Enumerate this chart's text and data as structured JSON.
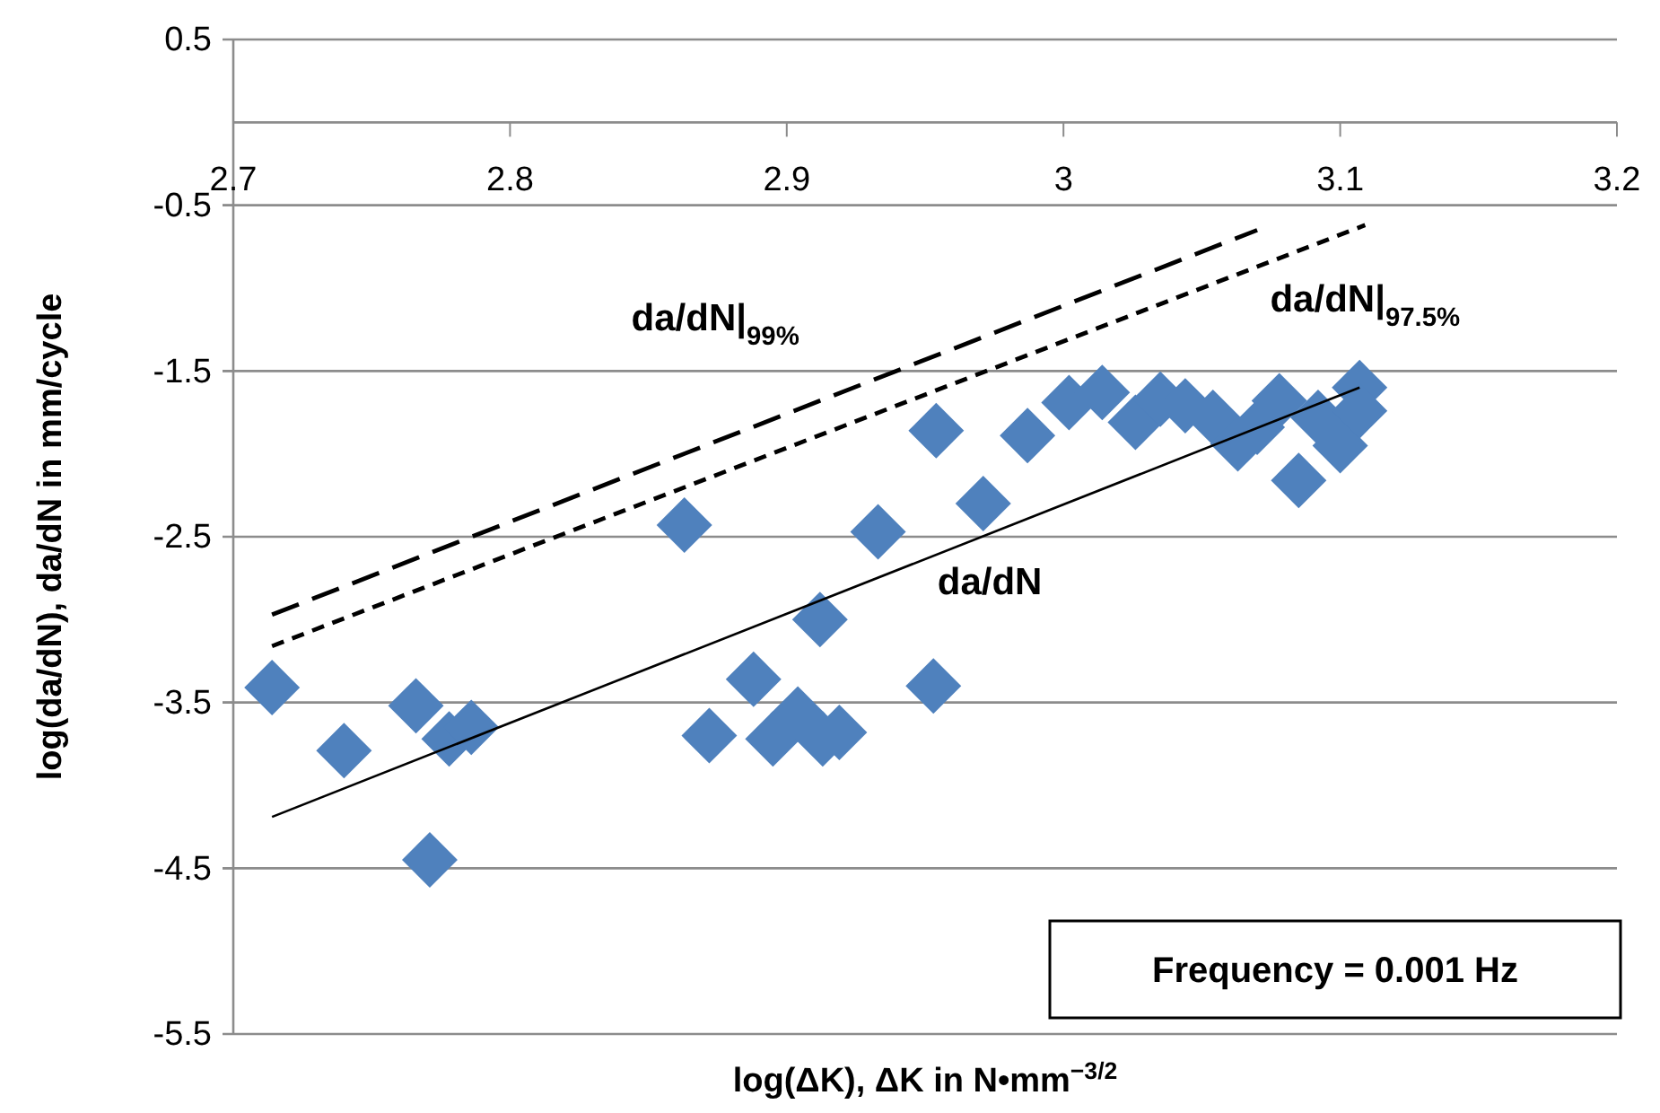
{
  "chart_data": {
    "type": "scatter",
    "xlabel": "log(ΔK), ΔK in N•mm$^{−3/2}$",
    "ylabel": "log(da/dN), da/dN in mm/cycle",
    "xlim": [
      2.7,
      3.2
    ],
    "xticks": [
      2.7,
      2.8,
      2.9,
      3,
      3.1,
      3.2
    ],
    "ylim": [
      -5.5,
      0.5
    ],
    "yticks": [
      -5.5,
      -4.5,
      -3.5,
      -2.5,
      -1.5,
      -0.5,
      0.5
    ],
    "grid": "y",
    "series": [
      {
        "marker": "diamond",
        "color": "#4f81bd",
        "x": [
          2.714,
          2.74,
          2.766,
          2.771,
          2.778,
          2.786,
          2.863,
          2.872,
          2.888,
          2.895,
          2.904,
          2.913,
          2.912,
          2.919,
          2.933,
          2.953,
          2.954,
          2.971,
          2.987,
          3.002,
          3.014,
          3.026,
          3.035,
          3.044,
          3.054,
          3.063,
          3.07,
          3.078,
          3.085,
          3.092,
          3.1,
          3.107,
          3.107
        ],
        "values": [
          -3.41,
          -3.79,
          -3.52,
          -4.45,
          -3.72,
          -3.65,
          -2.43,
          -3.7,
          -3.36,
          -3.72,
          -3.57,
          -3.72,
          -3,
          -3.68,
          -2.47,
          -3.4,
          -1.86,
          -2.3,
          -1.89,
          -1.69,
          -1.63,
          -1.81,
          -1.67,
          -1.71,
          -1.78,
          -1.94,
          -1.84,
          -1.68,
          -2.16,
          -1.78,
          -1.95,
          -1.6,
          -1.74
        ]
      },
      {
        "type": "line",
        "name": "da/dN|$_{99%}$",
        "color": "#000000",
        "line_style": "dashed",
        "x": [
          2.714,
          3.07
        ],
        "values": [
          -2.97,
          -0.65
        ]
      },
      {
        "type": "line",
        "name": "da/dN|$_{97.5%}$",
        "color": "#000000",
        "line_style": "dotted",
        "x": [
          2.714,
          3.109
        ],
        "values": [
          -3.16,
          -0.62
        ]
      },
      {
        "type": "line",
        "name": "da/dN",
        "color": "#000000",
        "line_style": "solid",
        "x": [
          2.714,
          3.107
        ],
        "values": [
          -4.19,
          -1.6
        ]
      }
    ],
    "annotations": [
      "Frequency = 0.001 Hz"
    ]
  }
}
